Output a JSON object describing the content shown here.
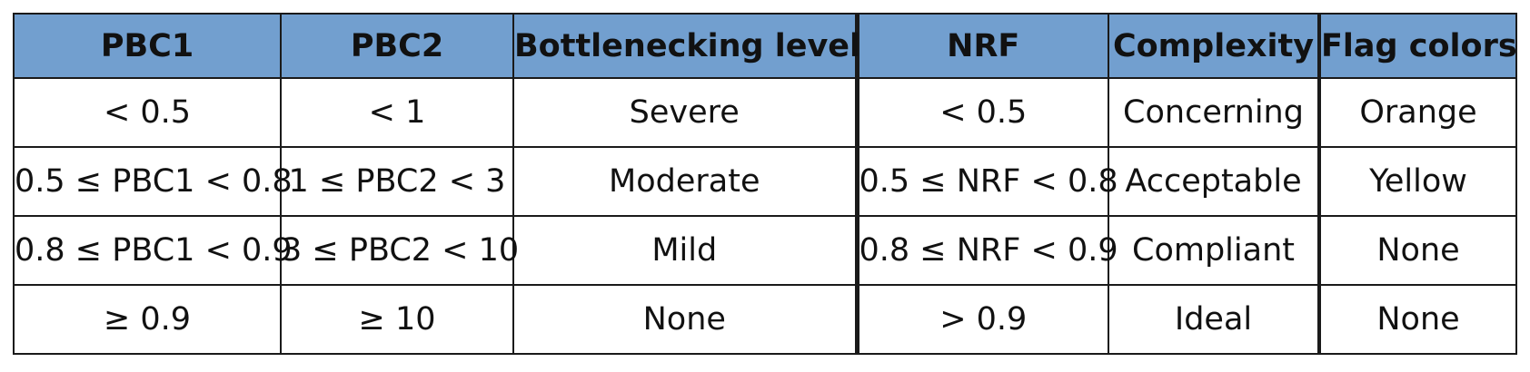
{
  "table": {
    "headers": [
      "PBC1",
      "PBC2",
      "Bottlenecking level",
      "NRF",
      "Complexity",
      "Flag colors"
    ],
    "rows": [
      [
        "< 0.5",
        "< 1",
        "Severe",
        "< 0.5",
        "Concerning",
        "Orange"
      ],
      [
        "0.5 ≤ PBC1 < 0.8",
        "1 ≤ PBC2 < 3",
        "Moderate",
        "0.5 ≤ NRF < 0.8",
        "Acceptable",
        "Yellow"
      ],
      [
        "0.8 ≤ PBC1 < 0.9",
        "3 ≤ PBC2 < 10",
        "Mild",
        "0.8 ≤ NRF < 0.9",
        "Compliant",
        "None"
      ],
      [
        "≥ 0.9",
        "≥ 10",
        "None",
        "> 0.9",
        "Ideal",
        "None"
      ]
    ]
  },
  "colors": {
    "header_background": "#729fcf",
    "border": "#1a1a1a",
    "text": "#111111"
  }
}
